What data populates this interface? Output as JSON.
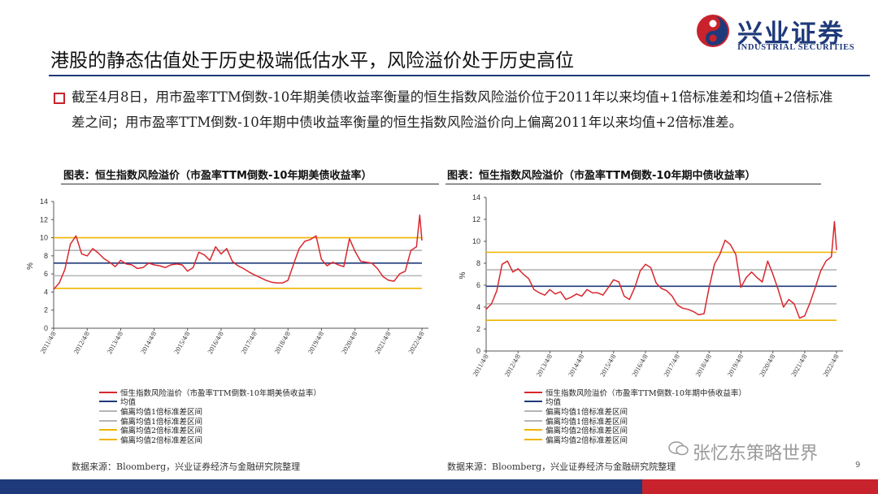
{
  "header": {
    "logo_cn": "兴业证券",
    "logo_en": "INDUSTRIAL SECURITIES",
    "title": "港股的静态估值处于历史极端低估水平，风险溢价处于历史高位"
  },
  "bullet": {
    "text": "截至4月8日，用市盈率TTM倒数-10年期美债收益率衡量的恒生指数风险溢价位于2011年以来均值+1倍标准差和均值+2倍标准差之间；用市盈率TTM倒数-10年期中债收益率衡量的恒生指数风险溢价向上偏离2011年以来均值+2倍标准差。"
  },
  "charts_meta": {
    "source": "数据来源：Bloomberg，兴业证券经济与金融研究院整理",
    "page_number": "9",
    "watermark": "张忆东策略世界"
  },
  "colors": {
    "series": "#d9272e",
    "mean": "#1f3a7a",
    "sd1": "#b5b5b5",
    "sd2": "#f0b400",
    "brand": "#1f3a7a",
    "brand_red": "#c8232c"
  },
  "chart_data": [
    {
      "type": "line",
      "title": "图表：恒生指数风险溢价（市盈率TTM倒数-10年期美债收益率）",
      "ylabel": "%",
      "ylim": [
        0,
        14
      ],
      "yticks": [
        "0",
        "2",
        "4",
        "6",
        "8",
        "10",
        "12",
        "14"
      ],
      "x_ticks": [
        "2011/4/8",
        "2012/4/8",
        "2013/4/8",
        "2014/4/8",
        "2015/4/8",
        "2016/4/8",
        "2017/4/8",
        "2018/4/8",
        "2019/4/8",
        "2020/4/8",
        "2021/4/8",
        "2022/4/8"
      ],
      "x_range": [
        "2011/4/8",
        "2022/4/8"
      ],
      "grid": false,
      "legend_position": "bottom",
      "legend": [
        "恒生指数风险溢价（市盈率TTM倒数-10年期美债收益率）",
        "均值",
        "偏离均值1倍标准差区间",
        "偏离均值1倍标准差区间",
        "偏离均值2倍标准差区间",
        "偏离均值2倍标准差区间"
      ],
      "reference_lines": {
        "mean": 7.2,
        "plus_1sd": 8.6,
        "minus_1sd": 5.8,
        "plus_2sd": 10.0,
        "minus_2sd": 4.4
      },
      "series": [
        {
          "x": [
            "2011/4/8",
            "2011/6/8",
            "2011/8/8",
            "2011/10/8",
            "2011/12/8",
            "2012/2/8",
            "2012/4/8",
            "2012/6/8",
            "2012/8/8",
            "2012/10/8",
            "2012/12/8",
            "2013/2/8",
            "2013/4/8",
            "2013/6/8",
            "2013/8/8",
            "2013/10/8",
            "2013/12/8",
            "2014/2/8",
            "2014/4/8",
            "2014/6/8",
            "2014/8/8",
            "2014/10/8",
            "2014/12/8",
            "2015/2/8",
            "2015/4/8",
            "2015/6/8",
            "2015/8/8",
            "2015/10/8",
            "2015/12/8",
            "2016/2/8",
            "2016/4/8",
            "2016/6/8",
            "2016/8/8",
            "2016/10/8",
            "2016/12/8",
            "2017/2/8",
            "2017/4/8",
            "2017/6/8",
            "2017/8/8",
            "2017/10/8",
            "2017/12/8",
            "2018/2/8",
            "2018/4/8",
            "2018/6/8",
            "2018/8/8",
            "2018/10/8",
            "2018/12/8",
            "2019/2/8",
            "2019/4/8",
            "2019/6/8",
            "2019/8/8",
            "2019/10/8",
            "2019/12/8",
            "2020/2/8",
            "2020/4/8",
            "2020/6/8",
            "2020/8/8",
            "2020/10/8",
            "2020/12/8",
            "2021/2/8",
            "2021/4/8",
            "2021/6/8",
            "2021/8/8",
            "2021/10/8",
            "2021/12/8",
            "2022/2/8",
            "2022/3/15",
            "2022/4/8"
          ],
          "values": [
            4.3,
            5.0,
            6.5,
            9.3,
            10.2,
            8.2,
            8.0,
            8.8,
            8.3,
            7.7,
            7.3,
            6.8,
            7.5,
            7.1,
            7.0,
            6.6,
            6.7,
            7.2,
            7.0,
            6.9,
            6.7,
            7.0,
            7.1,
            7.0,
            6.3,
            6.7,
            8.4,
            8.1,
            7.5,
            9.0,
            8.2,
            8.8,
            7.4,
            6.9,
            6.6,
            6.2,
            5.9,
            5.6,
            5.3,
            5.1,
            5.0,
            5.0,
            5.3,
            7.1,
            8.8,
            9.6,
            9.8,
            10.2,
            7.6,
            6.9,
            7.3,
            7.0,
            6.8,
            9.9,
            8.5,
            7.4,
            7.3,
            7.2,
            6.6,
            5.7,
            5.3,
            5.2,
            6.0,
            6.3,
            8.6,
            9.0,
            12.5,
            9.7
          ]
        }
      ]
    },
    {
      "type": "line",
      "title": "图表：恒生指数风险溢价（市盈率TTM倒数-10年期中债收益率）",
      "ylabel": "%",
      "ylim": [
        0,
        14
      ],
      "yticks": [
        "0",
        "2",
        "4",
        "6",
        "8",
        "10",
        "12",
        "14"
      ],
      "x_ticks": [
        "2011/4/8",
        "2012/4/8",
        "2013/4/8",
        "2014/4/8",
        "2015/4/8",
        "2016/4/8",
        "2017/4/8",
        "2018/4/8",
        "2019/4/8",
        "2020/4/8",
        "2021/4/8",
        "2022/4/8"
      ],
      "x_range": [
        "2011/4/8",
        "2022/4/8"
      ],
      "grid": false,
      "legend_position": "bottom",
      "legend": [
        "恒生指数风险溢价（市盈率TTM倒数-10年期中债收益率）",
        "均值",
        "偏离均值1倍标准差区间",
        "偏离均值1倍标准差区间",
        "偏离均值2倍标准差区间",
        "偏离均值2倍标准差区间"
      ],
      "reference_lines": {
        "mean": 5.9,
        "plus_1sd": 7.4,
        "minus_1sd": 4.3,
        "plus_2sd": 9.0,
        "minus_2sd": 2.8
      },
      "series": [
        {
          "x": [
            "2011/4/8",
            "2011/6/8",
            "2011/8/8",
            "2011/10/8",
            "2011/12/8",
            "2012/2/8",
            "2012/4/8",
            "2012/6/8",
            "2012/8/8",
            "2012/10/8",
            "2012/12/8",
            "2013/2/8",
            "2013/4/8",
            "2013/6/8",
            "2013/8/8",
            "2013/10/8",
            "2013/12/8",
            "2014/2/8",
            "2014/4/8",
            "2014/6/8",
            "2014/8/8",
            "2014/10/8",
            "2014/12/8",
            "2015/2/8",
            "2015/4/8",
            "2015/6/8",
            "2015/8/8",
            "2015/10/8",
            "2015/12/8",
            "2016/2/8",
            "2016/4/8",
            "2016/6/8",
            "2016/8/8",
            "2016/10/8",
            "2016/12/8",
            "2017/2/8",
            "2017/4/8",
            "2017/6/8",
            "2017/8/8",
            "2017/10/8",
            "2017/12/8",
            "2018/2/8",
            "2018/4/8",
            "2018/6/8",
            "2018/8/8",
            "2018/10/8",
            "2018/12/8",
            "2019/2/8",
            "2019/4/8",
            "2019/6/8",
            "2019/8/8",
            "2019/10/8",
            "2019/12/8",
            "2020/2/8",
            "2020/4/8",
            "2020/6/8",
            "2020/8/8",
            "2020/10/8",
            "2020/12/8",
            "2021/2/8",
            "2021/4/8",
            "2021/6/8",
            "2021/8/8",
            "2021/10/8",
            "2021/12/8",
            "2022/2/8",
            "2022/3/15",
            "2022/4/8"
          ],
          "values": [
            3.8,
            4.3,
            5.5,
            7.9,
            8.2,
            7.2,
            7.5,
            7.0,
            6.6,
            5.6,
            5.3,
            5.1,
            5.6,
            5.2,
            5.4,
            4.7,
            4.9,
            5.2,
            5.0,
            5.6,
            5.3,
            5.3,
            5.1,
            5.8,
            6.5,
            6.3,
            5.0,
            4.7,
            5.8,
            7.3,
            7.9,
            7.6,
            6.2,
            5.7,
            5.5,
            5.0,
            4.2,
            3.9,
            3.8,
            3.6,
            3.3,
            3.4,
            5.8,
            7.9,
            8.8,
            10.1,
            9.7,
            8.8,
            5.8,
            6.7,
            7.2,
            6.7,
            6.3,
            8.2,
            7.0,
            5.6,
            4.0,
            4.7,
            4.3,
            3.0,
            3.2,
            4.4,
            5.8,
            7.3,
            8.2,
            8.6,
            11.8,
            9.2
          ]
        }
      ]
    }
  ]
}
